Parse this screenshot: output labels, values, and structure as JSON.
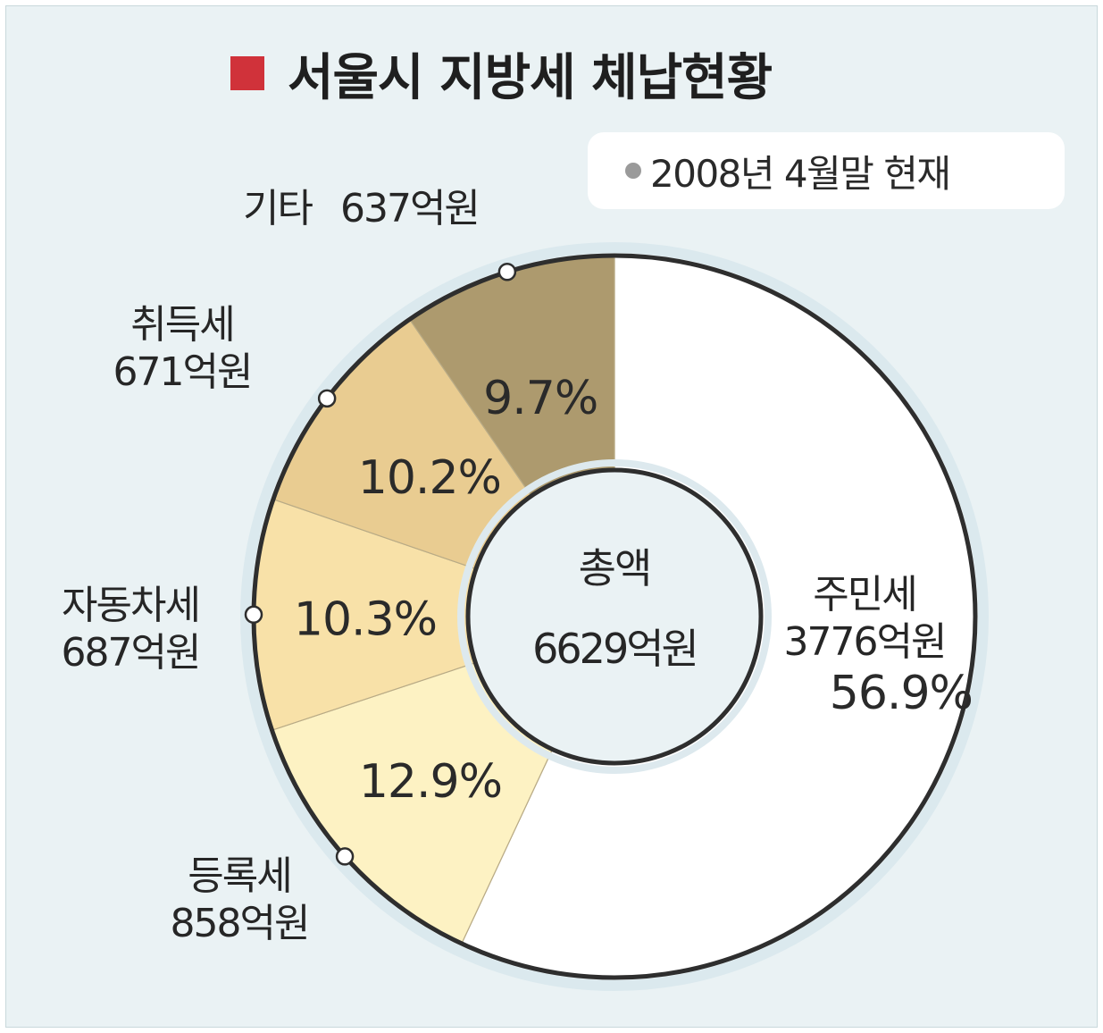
{
  "title": "서울시 지방세 체납현황",
  "note": "2008년 4월말 현재",
  "center": {
    "line1": "총액",
    "line2": "6629억원"
  },
  "colors": {
    "title_marker": "#d0323a",
    "background": "#eaf2f4",
    "note_dot": "#9a9a9a"
  },
  "chart_data": {
    "type": "pie",
    "title": "서울시 지방세 체납현황",
    "total_label": "총액 6629억원",
    "unit": "억원",
    "slices": [
      {
        "name": "주민세",
        "amount": 3776,
        "amount_label": "3776억원",
        "percent": 56.9,
        "percent_label": "56.9%",
        "color": "#ffffff"
      },
      {
        "name": "등록세",
        "amount": 858,
        "amount_label": "858억원",
        "percent": 12.9,
        "percent_label": "12.9%",
        "color": "#fdf2c3"
      },
      {
        "name": "자동차세",
        "amount": 687,
        "amount_label": "687억원",
        "percent": 10.3,
        "percent_label": "10.3%",
        "color": "#f8e1a8"
      },
      {
        "name": "취득세",
        "amount": 671,
        "amount_label": "671억원",
        "percent": 10.2,
        "percent_label": "10.2%",
        "color": "#e9cc91"
      },
      {
        "name": "기타",
        "amount": 637,
        "amount_label": "637억원",
        "percent": 9.7,
        "percent_label": "9.7%",
        "color": "#ad9a6e"
      }
    ]
  }
}
